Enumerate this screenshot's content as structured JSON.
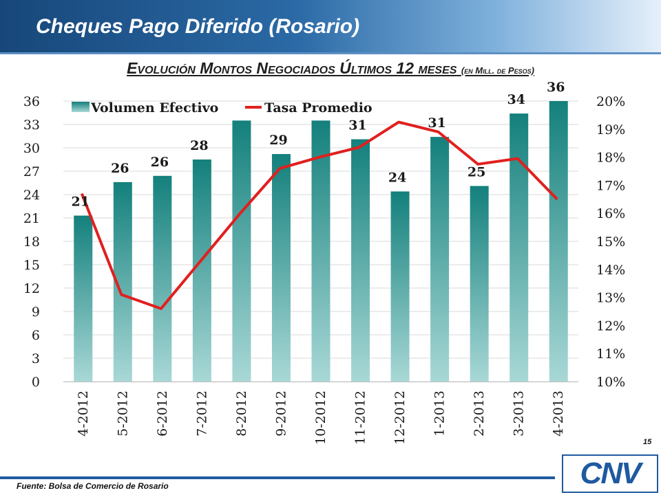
{
  "header": {
    "title": "Cheques Pago Diferido (Rosario)"
  },
  "subtitle": {
    "main": "Evolución Montos Negociados Últimos 12 meses",
    "units": "(en Mill. de Pesos)"
  },
  "page_number": "15",
  "source": "Fuente: Bolsa de Comercio de Rosario",
  "logo": {
    "text": "CNV"
  },
  "colors": {
    "bar_top": "#14807c",
    "bar_bottom": "#a8d8d6",
    "line": "#e0201e",
    "header": "#1f5aa0"
  },
  "chart_data": {
    "type": "bar",
    "title": "",
    "categories": [
      "4-2012",
      "5-2012",
      "6-2012",
      "7-2012",
      "8-2012",
      "9-2012",
      "10-2012",
      "11-2012",
      "12-2012",
      "1-2013",
      "2-2013",
      "3-2013",
      "4-2013"
    ],
    "series": [
      {
        "name": "Volumen Efectivo",
        "type": "bar",
        "axis": "left",
        "values": [
          21.3,
          25.6,
          26.4,
          28.5,
          33.5,
          29.2,
          33.5,
          31.1,
          24.4,
          31.4,
          25.1,
          34.4,
          36.0
        ],
        "labels": [
          "21",
          "26",
          "26",
          "28",
          "",
          "29",
          "",
          "31",
          "24",
          "31",
          "25",
          "34",
          "36"
        ]
      },
      {
        "name": "Tasa Promedio",
        "type": "line",
        "axis": "right",
        "values": [
          16.7,
          13.1,
          12.6,
          14.3,
          16.0,
          17.6,
          18.0,
          18.35,
          19.25,
          18.9,
          17.75,
          17.95,
          16.5
        ]
      }
    ],
    "y_left": {
      "min": 0,
      "max": 36,
      "ticks": [
        "0",
        "3",
        "6",
        "9",
        "12",
        "15",
        "18",
        "21",
        "24",
        "27",
        "30",
        "33",
        "36"
      ]
    },
    "y_right": {
      "min": 10,
      "max": 20,
      "ticks": [
        "10%",
        "11%",
        "12%",
        "13%",
        "14%",
        "15%",
        "16%",
        "17%",
        "18%",
        "19%",
        "20%"
      ]
    },
    "legend_position": "top-left",
    "grid": true
  }
}
